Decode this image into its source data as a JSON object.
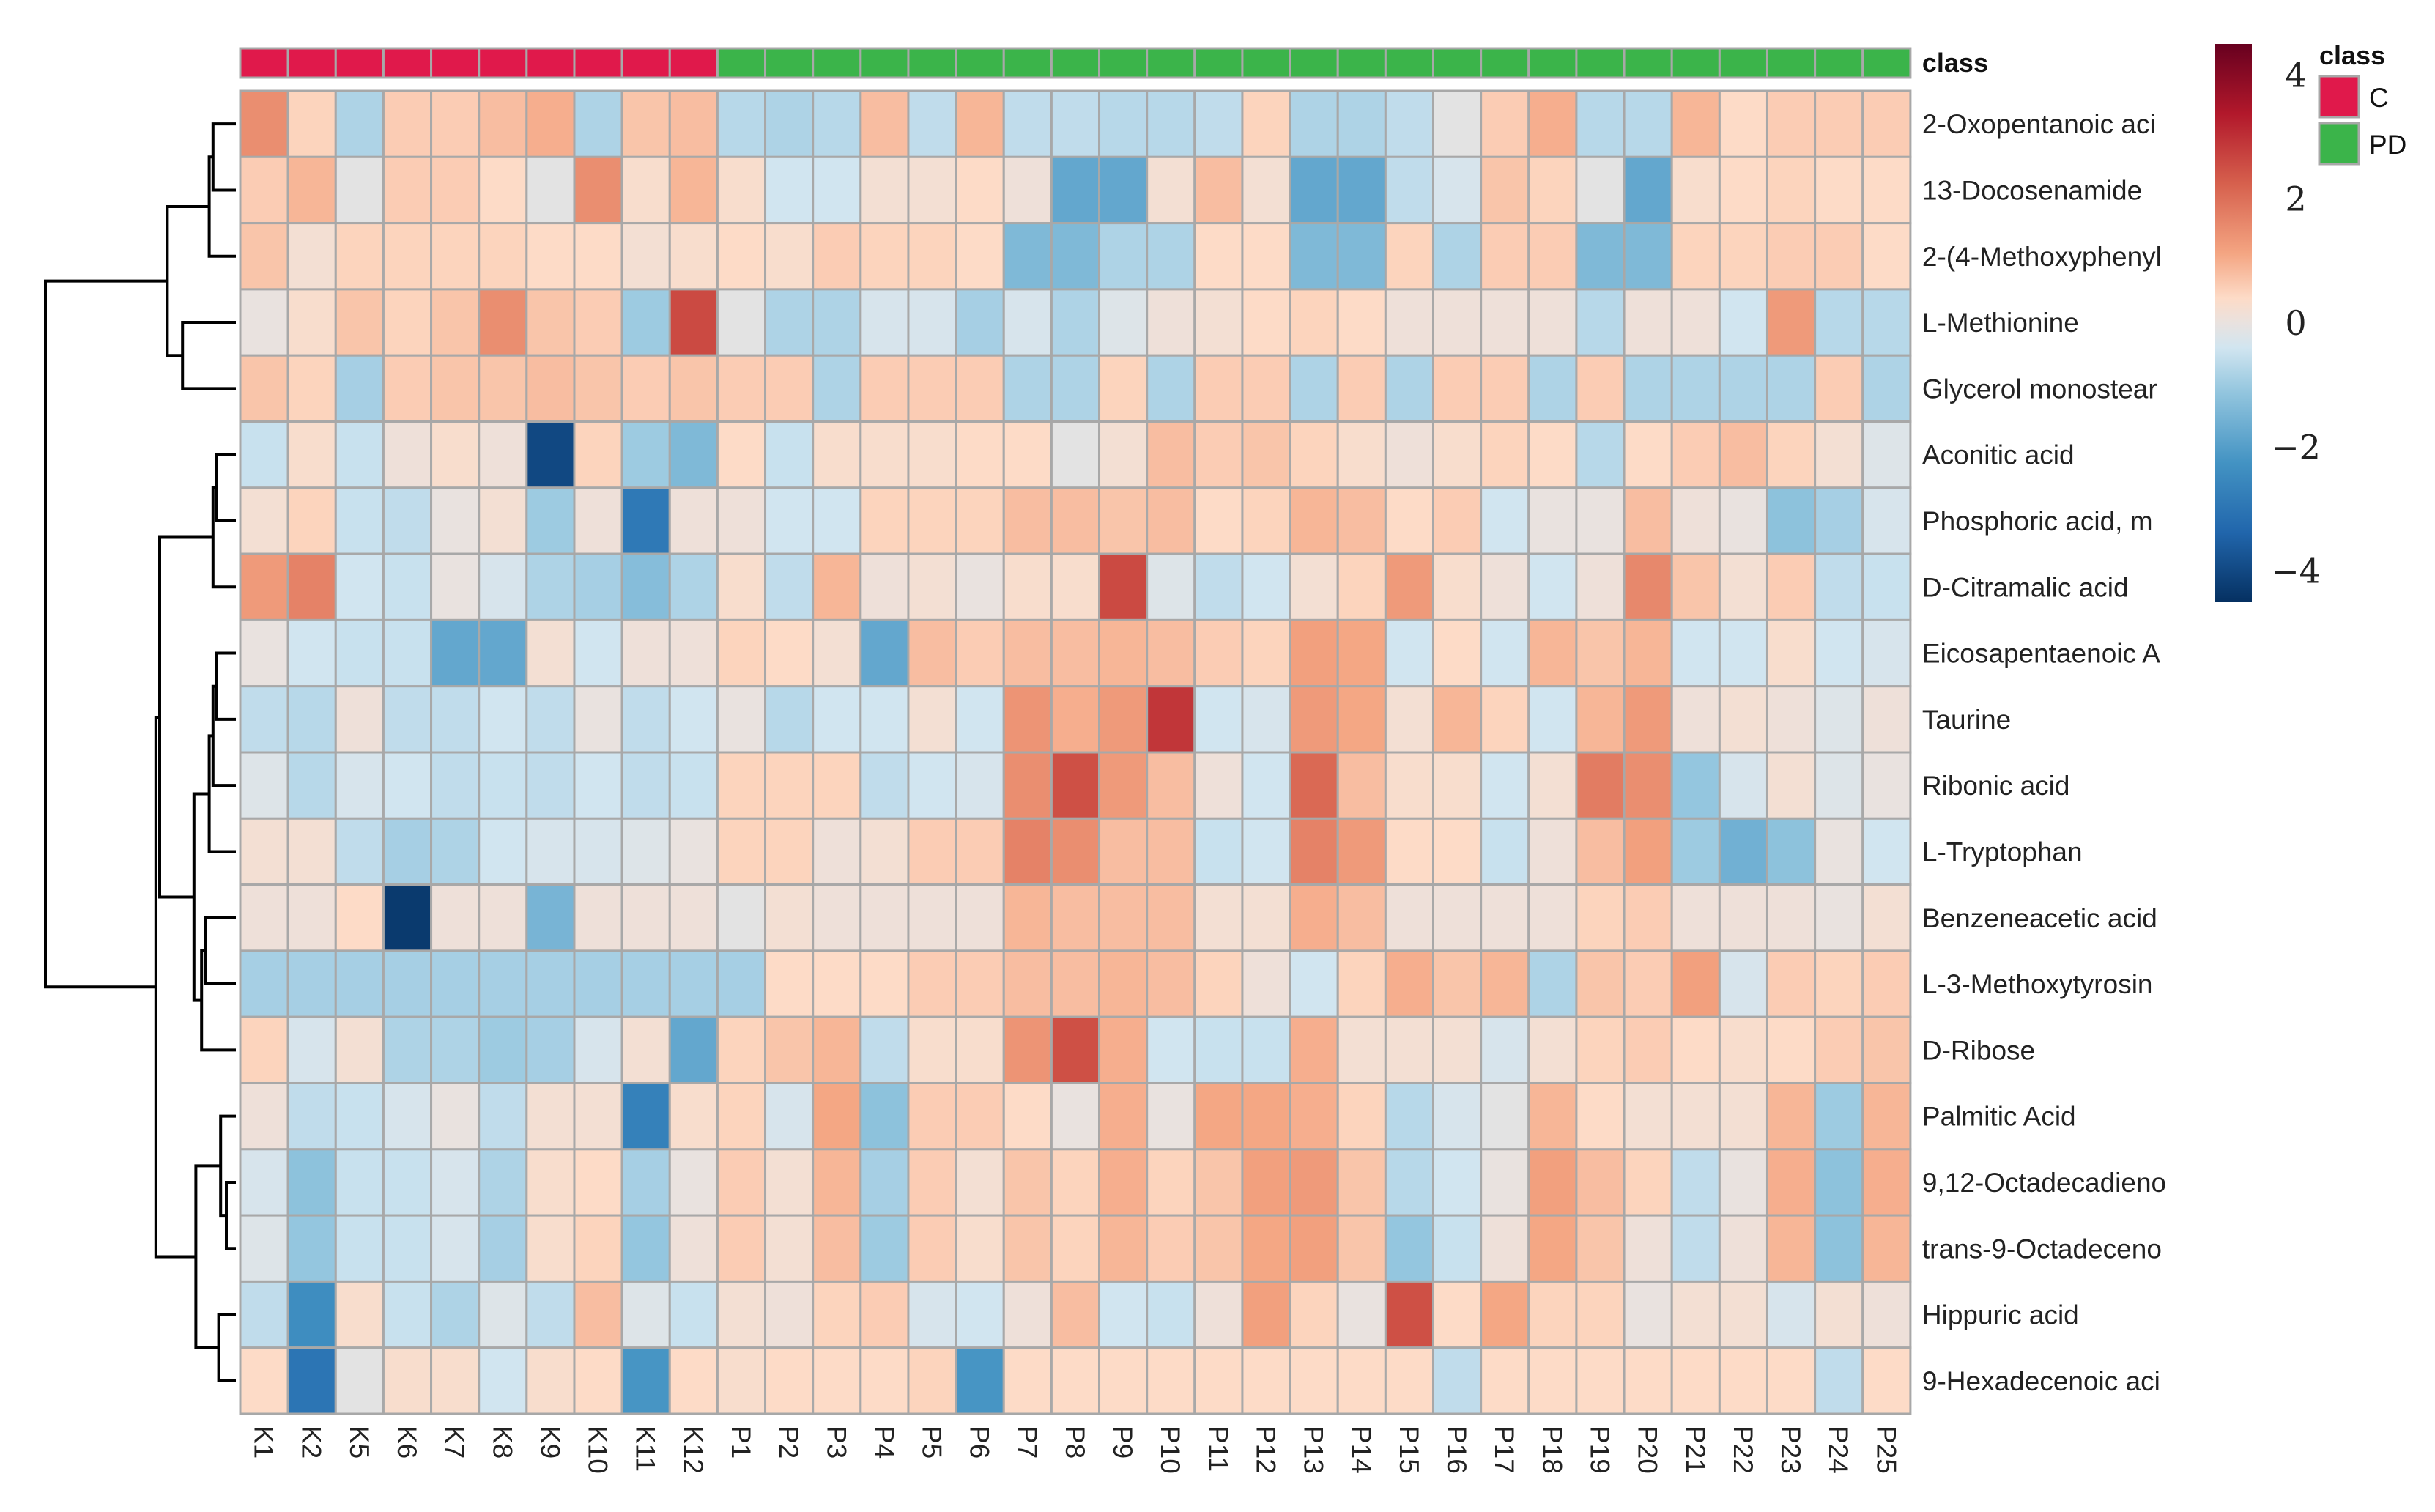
{
  "chart_data": {
    "type": "heatmap",
    "title": "",
    "class_label": "class",
    "columns": [
      "K1",
      "K2",
      "K5",
      "K6",
      "K7",
      "K8",
      "K9",
      "K10",
      "K11",
      "K12",
      "P1",
      "P2",
      "P3",
      "P4",
      "P5",
      "P6",
      "P7",
      "P8",
      "P9",
      "P10",
      "P11",
      "P12",
      "P13",
      "P14",
      "P15",
      "P16",
      "P17",
      "P18",
      "P19",
      "P20",
      "P21",
      "P22",
      "P23",
      "P24",
      "P25"
    ],
    "column_classes": [
      "C",
      "C",
      "C",
      "C",
      "C",
      "C",
      "C",
      "C",
      "C",
      "C",
      "PD",
      "PD",
      "PD",
      "PD",
      "PD",
      "PD",
      "PD",
      "PD",
      "PD",
      "PD",
      "PD",
      "PD",
      "PD",
      "PD",
      "PD",
      "PD",
      "PD",
      "PD",
      "PD",
      "PD",
      "PD",
      "PD",
      "PD",
      "PD",
      "PD"
    ],
    "rows": [
      "2-Oxopentanoic aci",
      "13-Docosenamide",
      "2-(4-Methoxyphenyl",
      "L-Methionine",
      "Glycerol monostear",
      "Aconitic acid",
      "Phosphoric acid, m",
      "D-Citramalic acid",
      "Eicosapentaenoic A",
      "Taurine",
      "Ribonic acid",
      "L-Tryptophan",
      "Benzeneacetic acid",
      "L-3-Methoxytyrosin",
      "D-Ribose",
      "Palmitic Acid",
      "9,12-Octadecadieno",
      "trans-9-Octadeceno",
      "Hippuric acid",
      "9-Hexadecenoic aci"
    ],
    "values": [
      [
        1.5,
        0.5,
        -0.8,
        0.6,
        0.6,
        0.8,
        1.0,
        -0.8,
        0.7,
        0.8,
        -0.7,
        -0.8,
        -0.7,
        0.8,
        -0.6,
        0.9,
        -0.6,
        -0.6,
        -0.7,
        -0.7,
        -0.6,
        0.5,
        -0.8,
        -0.8,
        -0.6,
        -0.1,
        0.6,
        1.0,
        -0.7,
        -0.7,
        0.9,
        0.4,
        0.6,
        0.6,
        0.6
      ],
      [
        0.6,
        0.9,
        -0.1,
        0.6,
        0.6,
        0.4,
        -0.1,
        1.5,
        0.3,
        0.9,
        0.3,
        -0.4,
        -0.4,
        0.2,
        0.2,
        0.4,
        0.1,
        -1.8,
        -1.8,
        0.2,
        0.8,
        0.2,
        -1.8,
        -1.8,
        -0.6,
        -0.3,
        0.7,
        0.5,
        -0.1,
        -1.8,
        0.3,
        0.4,
        0.5,
        0.4,
        0.4
      ],
      [
        0.7,
        0.2,
        0.5,
        0.5,
        0.5,
        0.5,
        0.4,
        0.4,
        0.2,
        0.3,
        0.4,
        0.3,
        0.6,
        0.5,
        0.5,
        0.4,
        -1.4,
        -1.4,
        -0.8,
        -0.8,
        0.4,
        0.4,
        -1.4,
        -1.4,
        0.5,
        -0.8,
        0.6,
        0.6,
        -1.4,
        -1.4,
        0.5,
        0.5,
        0.6,
        0.6,
        0.4
      ],
      [
        0.0,
        0.3,
        0.7,
        0.5,
        0.7,
        1.5,
        0.7,
        0.6,
        -1.0,
        2.6,
        -0.1,
        -0.8,
        -0.8,
        -0.3,
        -0.3,
        -0.9,
        -0.3,
        -0.8,
        -0.2,
        0.1,
        0.2,
        0.4,
        0.5,
        0.4,
        0.1,
        0.1,
        0.1,
        0.1,
        -0.7,
        0.1,
        0.1,
        -0.4,
        1.3,
        -0.7,
        -0.7
      ],
      [
        0.7,
        0.5,
        -0.9,
        0.6,
        0.7,
        0.7,
        0.8,
        0.7,
        0.6,
        0.7,
        0.6,
        0.6,
        -0.8,
        0.6,
        0.6,
        0.6,
        -0.8,
        -0.8,
        0.5,
        -0.8,
        0.6,
        0.6,
        -0.8,
        0.6,
        -0.8,
        0.6,
        0.6,
        -0.8,
        0.6,
        -0.8,
        -0.8,
        -0.8,
        -0.8,
        0.6,
        -0.8
      ],
      [
        -0.5,
        0.3,
        -0.5,
        0.1,
        0.3,
        0.1,
        -4.0,
        0.5,
        -1.0,
        -1.4,
        0.4,
        -0.5,
        0.3,
        0.3,
        0.3,
        0.4,
        0.4,
        -0.1,
        0.2,
        0.8,
        0.6,
        0.7,
        0.5,
        0.3,
        0.1,
        0.3,
        0.5,
        0.4,
        -0.7,
        0.4,
        0.6,
        0.8,
        0.5,
        0.2,
        -0.2
      ],
      [
        0.2,
        0.5,
        -0.5,
        -0.6,
        0.0,
        0.2,
        -1.0,
        0.1,
        -2.9,
        0.1,
        0.1,
        -0.4,
        -0.4,
        0.5,
        0.5,
        0.5,
        0.8,
        0.8,
        0.7,
        0.8,
        0.4,
        0.5,
        0.9,
        0.8,
        0.4,
        0.6,
        -0.4,
        0.0,
        0.0,
        0.8,
        0.1,
        0.0,
        -1.2,
        -0.9,
        -0.3
      ],
      [
        1.3,
        1.7,
        -0.4,
        -0.5,
        0.0,
        -0.3,
        -0.8,
        -0.9,
        -1.3,
        -0.8,
        0.3,
        -0.6,
        0.9,
        0.1,
        0.2,
        0.0,
        0.3,
        0.3,
        2.6,
        -0.2,
        -0.6,
        -0.4,
        0.2,
        0.5,
        1.3,
        0.3,
        0.1,
        -0.4,
        0.1,
        1.6,
        0.7,
        0.2,
        0.6,
        -0.6,
        -0.5
      ],
      [
        0.0,
        -0.4,
        -0.5,
        -0.5,
        -1.8,
        -1.8,
        0.2,
        -0.4,
        0.1,
        0.1,
        0.5,
        0.4,
        0.2,
        -1.8,
        0.8,
        0.6,
        0.8,
        0.8,
        0.9,
        0.8,
        0.6,
        0.5,
        1.2,
        1.1,
        -0.4,
        0.4,
        -0.4,
        0.9,
        0.7,
        0.9,
        -0.4,
        -0.4,
        0.3,
        -0.4,
        -0.3
      ],
      [
        -0.6,
        -0.7,
        0.1,
        -0.6,
        -0.6,
        -0.4,
        -0.6,
        0.0,
        -0.6,
        -0.4,
        0.0,
        -0.7,
        -0.4,
        -0.4,
        0.2,
        -0.4,
        1.4,
        1.0,
        1.3,
        2.9,
        -0.4,
        -0.3,
        1.3,
        1.1,
        0.2,
        0.9,
        0.5,
        -0.4,
        0.9,
        1.3,
        0.1,
        0.2,
        0.1,
        -0.2,
        0.1
      ],
      [
        -0.2,
        -0.7,
        -0.3,
        -0.4,
        -0.6,
        -0.5,
        -0.6,
        -0.4,
        -0.6,
        -0.5,
        0.5,
        0.5,
        0.5,
        -0.6,
        -0.4,
        -0.3,
        1.5,
        2.5,
        1.3,
        0.8,
        0.1,
        -0.4,
        2.1,
        0.8,
        0.3,
        0.3,
        -0.4,
        0.2,
        1.8,
        1.5,
        -1.1,
        -0.3,
        0.2,
        -0.2,
        0.0
      ],
      [
        0.2,
        0.2,
        -0.6,
        -0.9,
        -0.8,
        -0.4,
        -0.3,
        -0.3,
        -0.2,
        0.0,
        0.5,
        0.5,
        0.1,
        0.2,
        0.6,
        0.6,
        1.7,
        1.5,
        0.8,
        0.8,
        -0.5,
        -0.4,
        1.7,
        1.3,
        0.4,
        0.4,
        -0.5,
        0.1,
        0.8,
        1.2,
        -1.0,
        -1.6,
        -1.2,
        0.0,
        -0.4
      ],
      [
        0.1,
        0.1,
        0.4,
        -4.3,
        0.1,
        0.1,
        -1.5,
        0.1,
        0.1,
        0.1,
        -0.1,
        0.2,
        0.1,
        0.1,
        0.1,
        0.1,
        0.9,
        0.8,
        0.8,
        0.8,
        0.2,
        0.2,
        1.0,
        0.8,
        0.1,
        0.1,
        0.1,
        0.1,
        0.5,
        0.6,
        0.1,
        0.1,
        0.1,
        0.0,
        0.2
      ],
      [
        -0.9,
        -0.9,
        -0.9,
        -0.9,
        -0.9,
        -0.9,
        -0.9,
        -0.9,
        -0.9,
        -0.9,
        -0.9,
        0.4,
        0.4,
        0.4,
        0.6,
        0.6,
        0.8,
        0.8,
        0.9,
        0.8,
        0.5,
        0.1,
        -0.4,
        0.5,
        1.0,
        0.7,
        0.9,
        -0.8,
        0.7,
        0.6,
        1.2,
        -0.3,
        0.6,
        0.5,
        0.6
      ],
      [
        0.5,
        -0.3,
        0.2,
        -0.8,
        -0.8,
        -1.0,
        -0.9,
        -0.3,
        0.2,
        -1.8,
        0.5,
        0.7,
        0.9,
        -0.6,
        0.3,
        0.3,
        1.4,
        2.5,
        1.0,
        -0.4,
        -0.5,
        -0.5,
        1.0,
        0.2,
        0.2,
        0.2,
        -0.3,
        0.2,
        0.5,
        0.6,
        0.4,
        0.3,
        0.4,
        0.6,
        0.7
      ],
      [
        0.1,
        -0.6,
        -0.5,
        -0.3,
        0.0,
        -0.6,
        0.2,
        0.2,
        -2.7,
        0.3,
        0.5,
        -0.3,
        1.1,
        -1.2,
        0.6,
        0.6,
        0.4,
        0.0,
        1.0,
        0.0,
        1.1,
        1.1,
        1.0,
        0.5,
        -0.7,
        -0.3,
        -0.1,
        0.9,
        0.4,
        0.2,
        0.2,
        0.2,
        0.9,
        -1.0,
        0.9
      ],
      [
        -0.3,
        -1.2,
        -0.5,
        -0.5,
        -0.3,
        -0.8,
        0.3,
        0.4,
        -0.9,
        0.0,
        0.6,
        0.2,
        0.9,
        -0.9,
        0.6,
        0.2,
        0.7,
        0.5,
        1.0,
        0.5,
        0.7,
        1.2,
        1.3,
        0.7,
        -0.7,
        -0.4,
        0.0,
        1.2,
        0.8,
        0.5,
        -0.6,
        0.0,
        1.0,
        -1.2,
        1.0
      ],
      [
        -0.2,
        -1.1,
        -0.5,
        -0.5,
        -0.3,
        -0.9,
        0.3,
        0.5,
        -1.1,
        0.1,
        0.6,
        0.2,
        0.8,
        -1.0,
        0.6,
        0.3,
        0.7,
        0.5,
        0.9,
        0.6,
        0.7,
        1.1,
        1.2,
        0.7,
        -1.1,
        -0.5,
        0.1,
        1.1,
        0.7,
        0.1,
        -0.6,
        0.1,
        0.9,
        -1.2,
        0.9
      ],
      [
        -0.6,
        -2.4,
        0.3,
        -0.5,
        -0.8,
        -0.2,
        -0.6,
        0.8,
        -0.2,
        -0.5,
        0.2,
        0.1,
        0.5,
        0.6,
        -0.3,
        -0.4,
        0.1,
        0.8,
        -0.4,
        -0.5,
        0.1,
        1.2,
        0.5,
        0.0,
        2.5,
        0.4,
        1.1,
        0.5,
        0.5,
        0.0,
        0.2,
        0.2,
        -0.3,
        0.2,
        0.1
      ],
      [
        0.4,
        -3.0,
        -0.1,
        0.3,
        0.3,
        -0.4,
        0.3,
        0.4,
        -2.2,
        0.4,
        0.3,
        0.4,
        0.4,
        0.4,
        0.5,
        -2.2,
        0.4,
        0.4,
        0.4,
        0.4,
        0.4,
        0.4,
        0.4,
        0.4,
        0.4,
        -0.6,
        0.4,
        0.4,
        0.4,
        0.4,
        0.4,
        0.4,
        0.4,
        -0.6,
        0.4
      ]
    ],
    "color_scale": {
      "min": -4.5,
      "max": 4.5,
      "stops": [
        {
          "v": -4.5,
          "c": "#053061"
        },
        {
          "v": -3.375,
          "c": "#2166ac"
        },
        {
          "v": -2.25,
          "c": "#4393c3"
        },
        {
          "v": -1.125,
          "c": "#92c5de"
        },
        {
          "v": -0.4,
          "c": "#d1e5f0"
        },
        {
          "v": 0,
          "c": "#e9e2df"
        },
        {
          "v": 0.4,
          "c": "#fddbc7"
        },
        {
          "v": 1.125,
          "c": "#f4a582"
        },
        {
          "v": 2.25,
          "c": "#d6604d"
        },
        {
          "v": 3.375,
          "c": "#b2182b"
        },
        {
          "v": 4.5,
          "c": "#67001f"
        }
      ],
      "ticks": [
        4,
        2,
        0,
        -2,
        -4
      ],
      "tick_labels": [
        "4",
        "2",
        "0",
        "−2",
        "−4"
      ]
    },
    "legend": {
      "title": "class",
      "placement": "top-right",
      "entries": [
        {
          "label": "C",
          "color": "#e0194b"
        },
        {
          "label": "PD",
          "color": "#3bb44a"
        }
      ]
    },
    "row_dendrogram": [
      [
        0,
        1,
        0.12
      ],
      [
        20,
        2,
        0.14
      ],
      [
        3,
        4,
        0.28
      ],
      [
        21,
        22,
        0.36
      ],
      [
        5,
        6,
        0.1
      ],
      [
        24,
        7,
        0.12
      ],
      [
        8,
        9,
        0.1
      ],
      [
        26,
        10,
        0.12
      ],
      [
        27,
        11,
        0.14
      ],
      [
        12,
        13,
        0.16
      ],
      [
        29,
        14,
        0.18
      ],
      [
        28,
        30,
        0.22
      ],
      [
        25,
        31,
        0.4
      ],
      [
        16,
        17,
        0.05
      ],
      [
        33,
        15,
        0.08
      ],
      [
        18,
        19,
        0.09
      ],
      [
        34,
        35,
        0.21
      ],
      [
        32,
        36,
        0.42
      ],
      [
        23,
        37,
        1.0
      ]
    ],
    "colors": {
      "cell_border": "#a8a8a8",
      "axis_text": "#222222",
      "dendrogram": "#000000"
    }
  }
}
